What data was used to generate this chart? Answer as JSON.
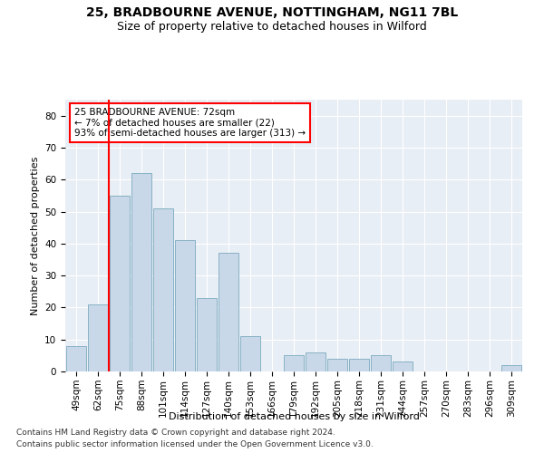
{
  "title1": "25, BRADBOURNE AVENUE, NOTTINGHAM, NG11 7BL",
  "title2": "Size of property relative to detached houses in Wilford",
  "xlabel": "Distribution of detached houses by size in Wilford",
  "ylabel": "Number of detached properties",
  "categories": [
    "49sqm",
    "62sqm",
    "75sqm",
    "88sqm",
    "101sqm",
    "114sqm",
    "127sqm",
    "140sqm",
    "153sqm",
    "166sqm",
    "179sqm",
    "192sqm",
    "205sqm",
    "218sqm",
    "231sqm",
    "244sqm",
    "257sqm",
    "270sqm",
    "283sqm",
    "296sqm",
    "309sqm"
  ],
  "values": [
    8,
    21,
    55,
    62,
    51,
    41,
    23,
    37,
    11,
    0,
    5,
    6,
    4,
    4,
    5,
    3,
    0,
    0,
    0,
    0,
    2
  ],
  "bar_color": "#c8d8e8",
  "bar_edge_color": "#7aabbf",
  "annotation_text": "25 BRADBOURNE AVENUE: 72sqm\n← 7% of detached houses are smaller (22)\n93% of semi-detached houses are larger (313) →",
  "annotation_box_color": "white",
  "annotation_box_edge": "red",
  "red_line_color": "red",
  "ylim": [
    0,
    85
  ],
  "yticks": [
    0,
    10,
    20,
    30,
    40,
    50,
    60,
    70,
    80
  ],
  "background_color": "#e8eef5",
  "grid_color": "white",
  "footer1": "Contains HM Land Registry data © Crown copyright and database right 2024.",
  "footer2": "Contains public sector information licensed under the Open Government Licence v3.0.",
  "title1_fontsize": 10,
  "title2_fontsize": 9,
  "axis_label_fontsize": 8,
  "tick_fontsize": 7.5,
  "annotation_fontsize": 7.5,
  "footer_fontsize": 6.5
}
